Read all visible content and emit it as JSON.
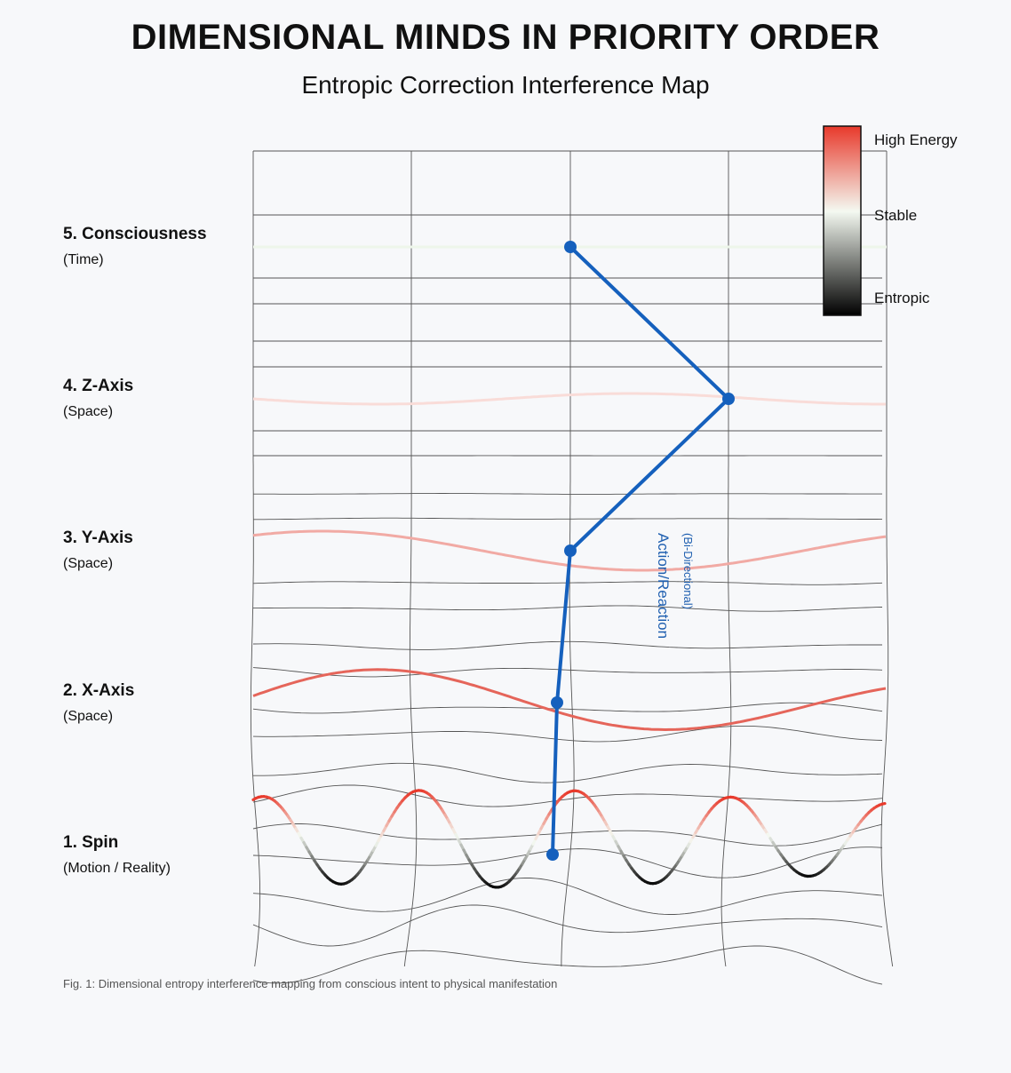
{
  "title": "DIMENSIONAL MINDS IN PRIORITY ORDER",
  "subtitle": "Entropic Correction Interference Map",
  "rows": [
    {
      "name": "5. Consciousness",
      "sub": "(Time)"
    },
    {
      "name": "4. Z-Axis",
      "sub": "(Space)"
    },
    {
      "name": "3. Y-Axis",
      "sub": "(Space)"
    },
    {
      "name": "2. X-Axis",
      "sub": "(Space)"
    },
    {
      "name": "1. Spin",
      "sub": "(Motion / Reality)"
    }
  ],
  "legend": {
    "high": "High Energy",
    "stable": "Stable",
    "entropic": "Entropic",
    "colors": {
      "high": "#e8392b",
      "stable": "#f4f9f1",
      "entropic": "#000000"
    }
  },
  "annotation": {
    "line1": "Action/Reaction",
    "line2": "(Bi-Directional)"
  },
  "path_color": "#1560bd",
  "caption": "Fig. 1: Dimensional entropy interference mapping from conscious intent to physical manifestation"
}
